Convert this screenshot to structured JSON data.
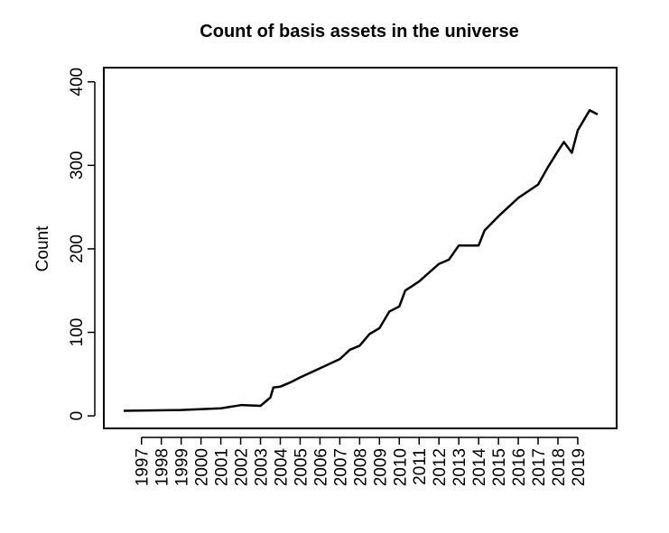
{
  "chart_data": {
    "type": "line",
    "title": "Count of basis assets in the universe",
    "y_label": "Count",
    "x": [
      1996.1,
      1999,
      2001,
      2002.05,
      2003,
      2003.5,
      2003.65,
      2004,
      2004.5,
      2005,
      2006,
      2007,
      2007.5,
      2008,
      2008.5,
      2009,
      2009.5,
      2010,
      2010.3,
      2011,
      2012,
      2012.5,
      2013,
      2013.5,
      2014,
      2014.3,
      2015,
      2016,
      2017,
      2017.5,
      2018,
      2018.3,
      2018.7,
      2019,
      2019.6,
      2020.0
    ],
    "series": [
      {
        "name": "Count",
        "color": "#000000",
        "values": [
          6,
          7,
          9,
          13,
          12,
          22,
          34,
          35,
          40,
          46,
          57,
          68,
          79,
          84,
          98,
          105,
          125,
          131,
          150,
          161,
          182,
          187,
          204,
          204,
          204,
          222,
          239,
          261,
          277,
          298,
          317,
          328,
          315,
          342,
          366,
          361
        ]
      }
    ],
    "xlim": [
      1995.1,
      2020.96
    ],
    "ylim": [
      -15,
      417
    ],
    "xticks": [
      1997,
      1998,
      1999,
      2000,
      2001,
      2002,
      2003,
      2004,
      2005,
      2006,
      2007,
      2008,
      2009,
      2010,
      2011,
      2012,
      2013,
      2014,
      2015,
      2016,
      2017,
      2018,
      2019
    ],
    "yticks": [
      0,
      100,
      200,
      300,
      400
    ]
  }
}
